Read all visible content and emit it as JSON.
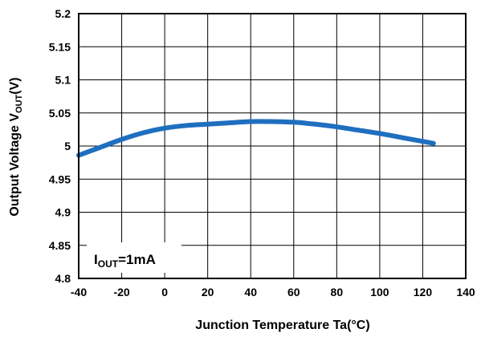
{
  "chart_data": {
    "type": "line",
    "xlabel": "Junction Temperature Ta(°C)",
    "ylabel": {
      "main": "Output Voltage V",
      "sub": "OUT",
      "unit": "(V)"
    },
    "annotation": {
      "main": "I",
      "sub": "OUT",
      "rest": "=1mA"
    },
    "xlim": [
      -40,
      140
    ],
    "ylim": [
      4.8,
      5.2
    ],
    "xticks": [
      -40,
      -20,
      0,
      20,
      40,
      60,
      80,
      100,
      120,
      140
    ],
    "yticks": [
      4.8,
      4.85,
      4.9,
      4.95,
      5,
      5.05,
      5.1,
      5.15,
      5.2
    ],
    "ytick_labels": [
      "4.8",
      "4.85",
      "4.9",
      "4.95",
      "5",
      "5.05",
      "5.1",
      "5.15",
      "5.2"
    ],
    "grid": true,
    "line_color": "#1f6fbf",
    "series": [
      {
        "x": [
          -40,
          -30,
          -20,
          -10,
          0,
          10,
          20,
          30,
          40,
          50,
          60,
          70,
          80,
          90,
          100,
          110,
          120,
          125
        ],
        "y": [
          4.986,
          4.998,
          5.01,
          5.02,
          5.027,
          5.031,
          5.033,
          5.035,
          5.037,
          5.037,
          5.036,
          5.033,
          5.029,
          5.024,
          5.019,
          5.013,
          5.007,
          5.004
        ]
      }
    ]
  }
}
